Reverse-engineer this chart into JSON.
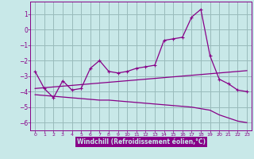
{
  "xlabel": "Windchill (Refroidissement éolien,°C)",
  "bg_color": "#c8e8e8",
  "line_color": "#880088",
  "grid_color": "#99bbbb",
  "xlabel_bg": "#880088",
  "xlabel_fg": "#c8e8e8",
  "xlim": [
    -0.5,
    23.5
  ],
  "ylim": [
    -6.5,
    1.8
  ],
  "yticks": [
    1,
    0,
    -1,
    -2,
    -3,
    -4,
    -5,
    -6
  ],
  "xticks": [
    0,
    1,
    2,
    3,
    4,
    5,
    6,
    7,
    8,
    9,
    10,
    11,
    12,
    13,
    14,
    15,
    16,
    17,
    18,
    19,
    20,
    21,
    22,
    23
  ],
  "line1_x": [
    0,
    1,
    2,
    3,
    4,
    5,
    6,
    7,
    8,
    9,
    10,
    11,
    12,
    13,
    14,
    15,
    16,
    17,
    18,
    19,
    20,
    21,
    22,
    23
  ],
  "line1_y": [
    -2.7,
    -3.8,
    -4.4,
    -3.3,
    -3.9,
    -3.8,
    -2.5,
    -2.0,
    -2.7,
    -2.8,
    -2.7,
    -2.5,
    -2.4,
    -2.3,
    -0.7,
    -0.6,
    -0.5,
    0.8,
    1.3,
    -1.7,
    -3.2,
    -3.5,
    -3.9,
    -4.0
  ],
  "line2_x": [
    0,
    1,
    2,
    3,
    4,
    5,
    6,
    7,
    8,
    9,
    10,
    11,
    12,
    13,
    14,
    15,
    16,
    17,
    18,
    19,
    20,
    21,
    22,
    23
  ],
  "line2_y": [
    -3.8,
    -3.75,
    -3.7,
    -3.65,
    -3.6,
    -3.55,
    -3.5,
    -3.45,
    -3.4,
    -3.35,
    -3.3,
    -3.25,
    -3.2,
    -3.15,
    -3.1,
    -3.05,
    -3.0,
    -2.95,
    -2.9,
    -2.85,
    -2.8,
    -2.75,
    -2.7,
    -2.65
  ],
  "line3_x": [
    0,
    1,
    2,
    3,
    4,
    5,
    6,
    7,
    8,
    9,
    10,
    11,
    12,
    13,
    14,
    15,
    16,
    17,
    18,
    19,
    20,
    21,
    22,
    23
  ],
  "line3_y": [
    -4.2,
    -4.25,
    -4.3,
    -4.35,
    -4.4,
    -4.45,
    -4.5,
    -4.55,
    -4.55,
    -4.6,
    -4.65,
    -4.7,
    -4.75,
    -4.8,
    -4.85,
    -4.9,
    -4.95,
    -5.0,
    -5.1,
    -5.2,
    -5.5,
    -5.7,
    -5.9,
    -6.0
  ]
}
